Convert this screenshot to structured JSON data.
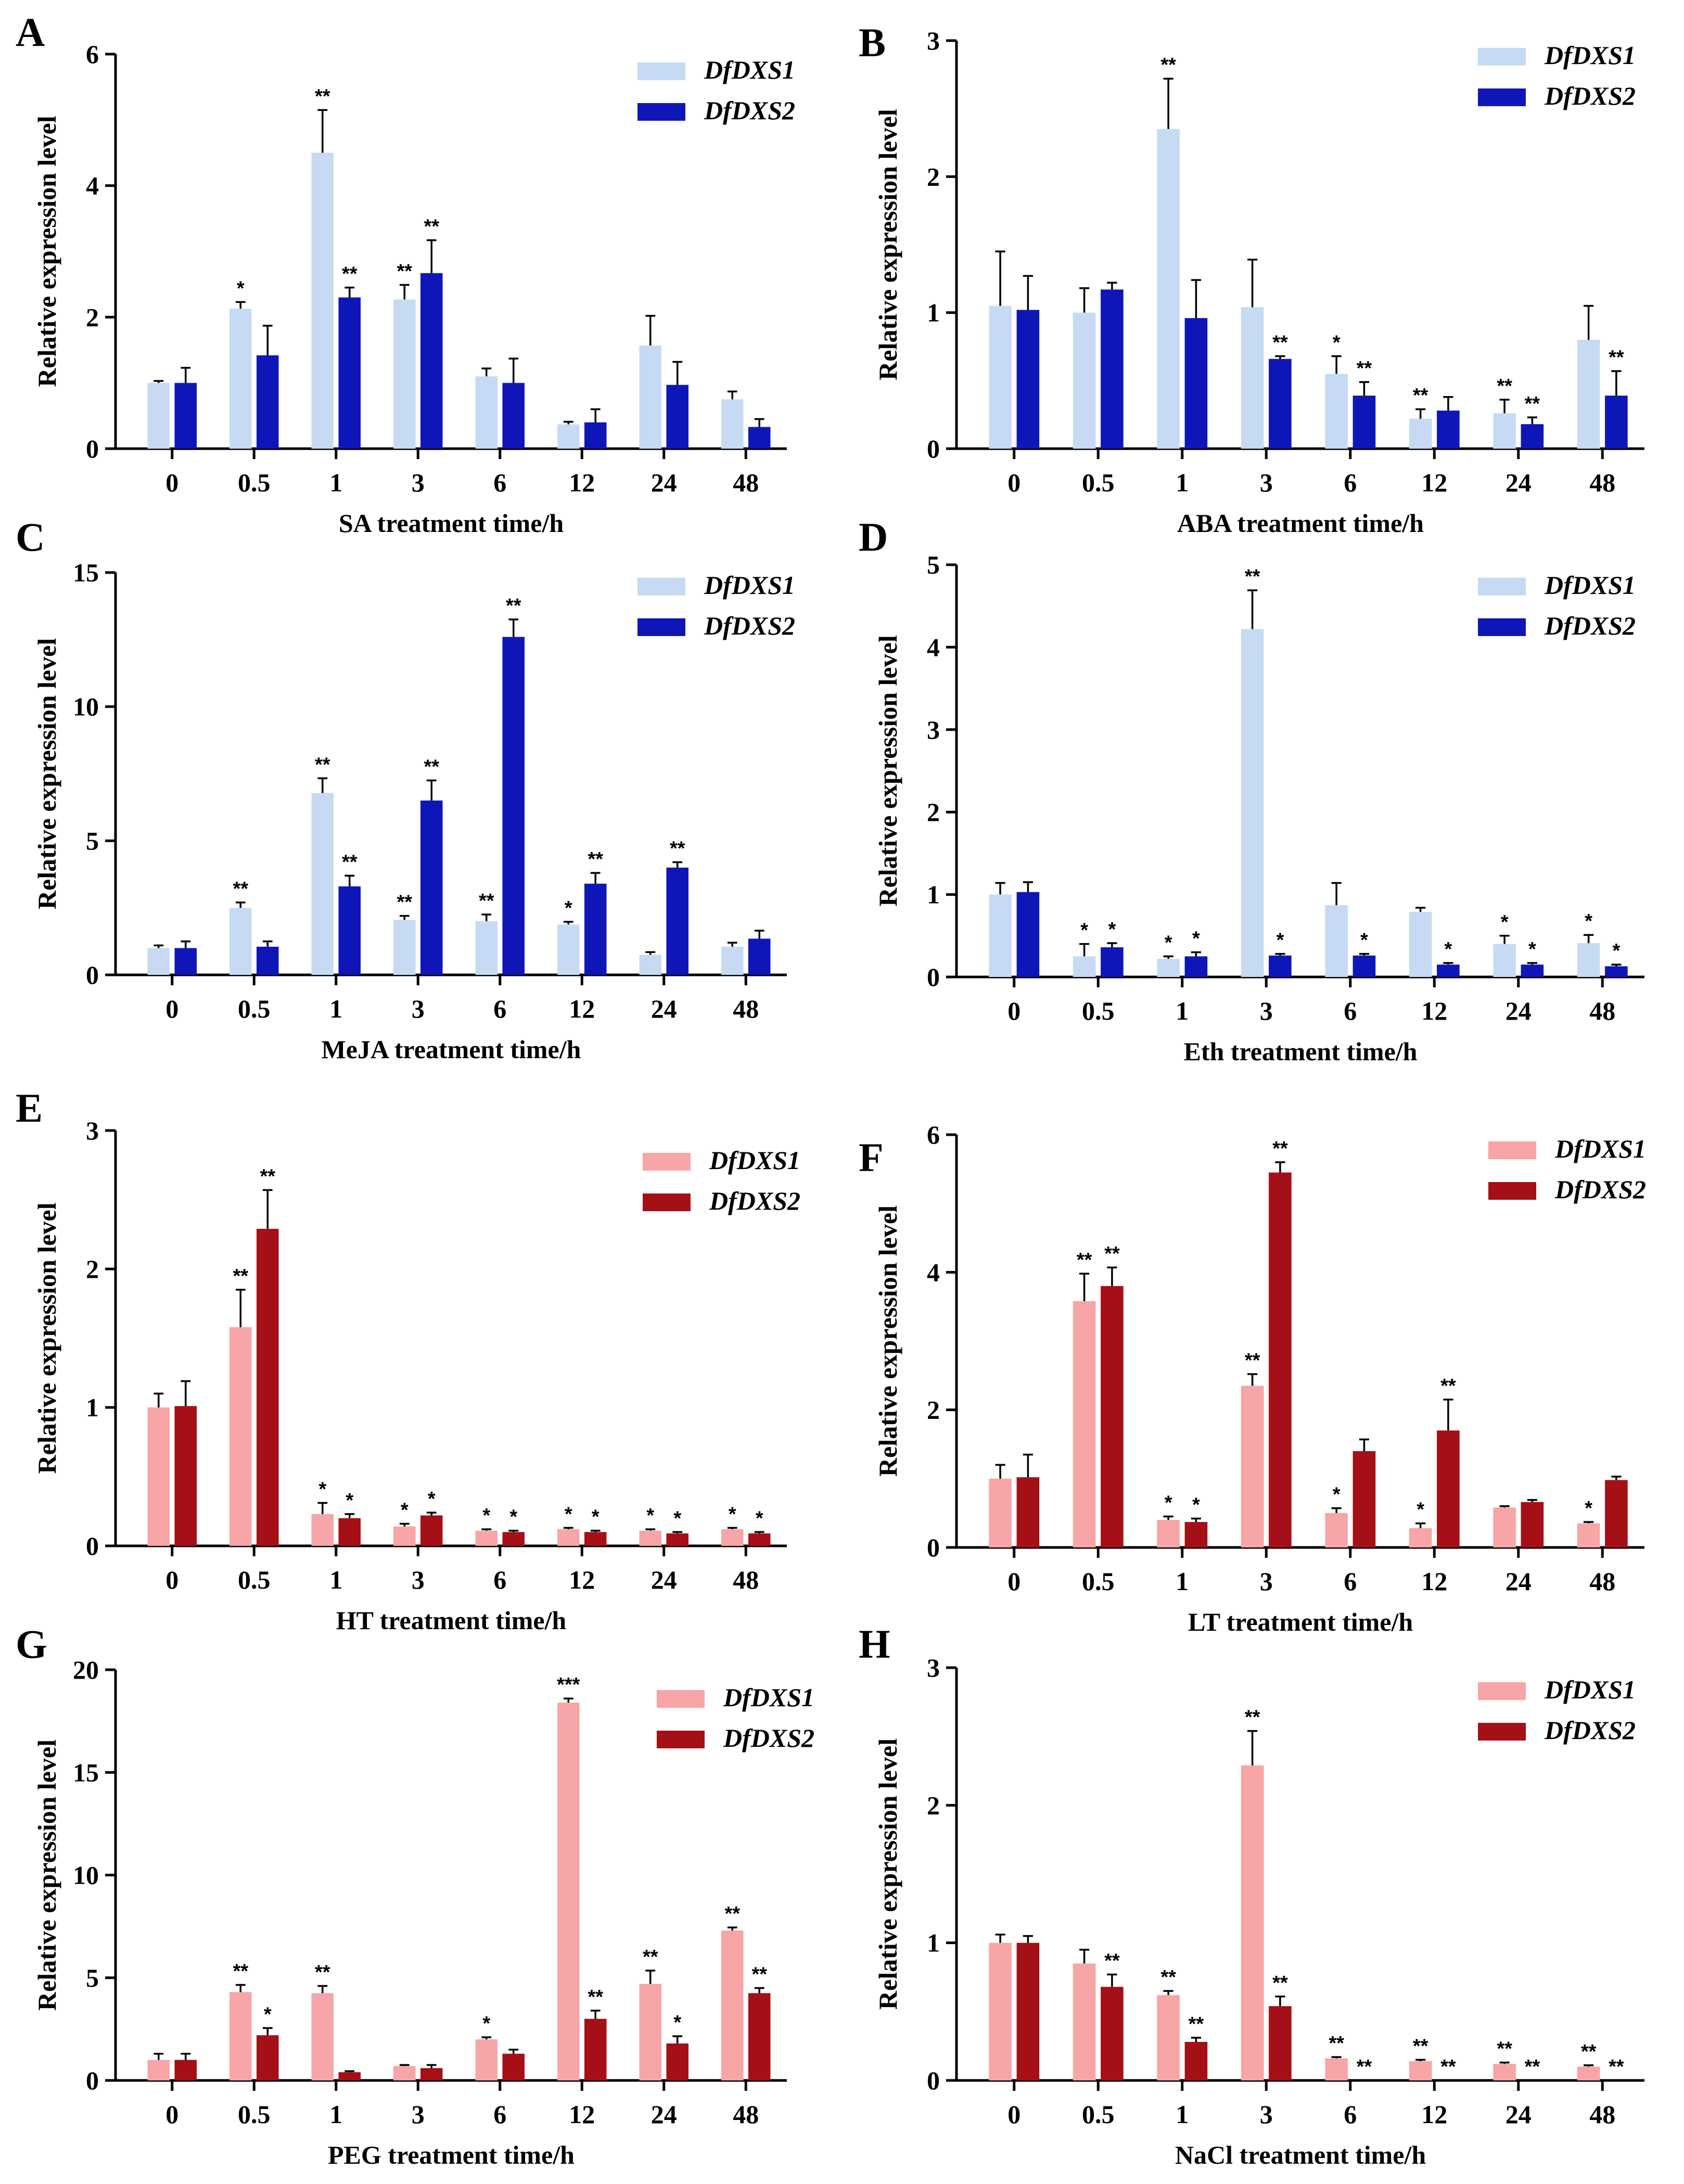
{
  "figure": {
    "colors": {
      "blue_light": "#c6dbf3",
      "blue_dark": "#0f16b8",
      "red_light": "#f7a5a6",
      "red_dark": "#a50f16"
    }
  },
  "chart_data": [
    {
      "type": "bar",
      "panel": "A",
      "title": "",
      "xlabel": "SA treatment time/h",
      "ylabel": "Relative expression  level",
      "categories": [
        "0",
        "0.5",
        "1",
        "3",
        "6",
        "12",
        "24",
        "48"
      ],
      "ylim": [
        0,
        6
      ],
      "yticks": [
        0,
        2,
        4,
        6
      ],
      "colors": [
        "#c6dbf3",
        "#0f16b8"
      ],
      "series": [
        {
          "name": "DfDXS1",
          "values": [
            1.0,
            2.13,
            4.5,
            2.27,
            1.1,
            0.37,
            1.57,
            0.75
          ],
          "errors": [
            0.03,
            0.1,
            0.65,
            0.22,
            0.12,
            0.04,
            0.45,
            0.12
          ],
          "sig": [
            "",
            "*",
            "**",
            "**",
            "",
            "",
            "",
            ""
          ]
        },
        {
          "name": "DfDXS2",
          "values": [
            1.0,
            1.42,
            2.3,
            2.67,
            1.0,
            0.4,
            0.97,
            0.33
          ],
          "errors": [
            0.23,
            0.45,
            0.15,
            0.5,
            0.37,
            0.2,
            0.35,
            0.12
          ],
          "sig": [
            "",
            "",
            "**",
            "**",
            "",
            "",
            "",
            ""
          ]
        }
      ]
    },
    {
      "type": "bar",
      "panel": "B",
      "title": "",
      "xlabel": "ABA treatment time/h",
      "ylabel": "Relative expression  level",
      "categories": [
        "0",
        "0.5",
        "1",
        "3",
        "6",
        "12",
        "24",
        "48"
      ],
      "ylim": [
        0,
        3
      ],
      "yticks": [
        0,
        1,
        2,
        3
      ],
      "colors": [
        "#c6dbf3",
        "#0f16b8"
      ],
      "series": [
        {
          "name": "DfDXS1",
          "values": [
            1.05,
            1.0,
            2.35,
            1.04,
            0.55,
            0.22,
            0.26,
            0.8
          ],
          "errors": [
            0.4,
            0.18,
            0.37,
            0.35,
            0.13,
            0.07,
            0.1,
            0.25
          ],
          "sig": [
            "",
            "",
            "**",
            "",
            "*",
            "**",
            "**",
            ""
          ]
        },
        {
          "name": "DfDXS2",
          "values": [
            1.02,
            1.17,
            0.96,
            0.66,
            0.39,
            0.28,
            0.18,
            0.39
          ],
          "errors": [
            0.25,
            0.05,
            0.28,
            0.02,
            0.1,
            0.1,
            0.05,
            0.18
          ],
          "sig": [
            "",
            "",
            "",
            "**",
            "**",
            "",
            "**",
            "**"
          ]
        }
      ]
    },
    {
      "type": "bar",
      "panel": "C",
      "title": "",
      "xlabel": "MeJA treatment time/h",
      "ylabel": "Relative expression  level",
      "categories": [
        "0",
        "0.5",
        "1",
        "3",
        "6",
        "12",
        "24",
        "48"
      ],
      "ylim": [
        0,
        15
      ],
      "yticks": [
        0,
        5,
        10,
        15
      ],
      "colors": [
        "#c6dbf3",
        "#0f16b8"
      ],
      "series": [
        {
          "name": "DfDXS1",
          "values": [
            1.0,
            2.5,
            6.78,
            2.05,
            2.0,
            1.88,
            0.75,
            1.05
          ],
          "errors": [
            0.1,
            0.2,
            0.55,
            0.15,
            0.25,
            0.1,
            0.1,
            0.15
          ],
          "sig": [
            "",
            "**",
            "**",
            "**",
            "**",
            "*",
            "",
            ""
          ]
        },
        {
          "name": "DfDXS2",
          "values": [
            1.0,
            1.05,
            3.3,
            6.5,
            12.6,
            3.4,
            4.0,
            1.35
          ],
          "errors": [
            0.25,
            0.2,
            0.4,
            0.75,
            0.65,
            0.4,
            0.2,
            0.3
          ],
          "sig": [
            "",
            "",
            "**",
            "**",
            "**",
            "**",
            "**",
            ""
          ]
        }
      ]
    },
    {
      "type": "bar",
      "panel": "D",
      "title": "",
      "xlabel": "Eth treatment time/h",
      "ylabel": "Relative expression  level",
      "categories": [
        "0",
        "0.5",
        "1",
        "3",
        "6",
        "12",
        "24",
        "48"
      ],
      "ylim": [
        0,
        5
      ],
      "yticks": [
        0,
        1,
        2,
        3,
        4,
        5
      ],
      "colors": [
        "#c6dbf3",
        "#0f16b8"
      ],
      "series": [
        {
          "name": "DfDXS1",
          "values": [
            1.0,
            0.25,
            0.22,
            4.22,
            0.87,
            0.79,
            0.4,
            0.41
          ],
          "errors": [
            0.14,
            0.15,
            0.03,
            0.47,
            0.27,
            0.05,
            0.1,
            0.1
          ],
          "sig": [
            "",
            "*",
            "*",
            "**",
            "",
            "",
            "*",
            "*"
          ]
        },
        {
          "name": "DfDXS2",
          "values": [
            1.03,
            0.36,
            0.25,
            0.26,
            0.26,
            0.15,
            0.15,
            0.13
          ],
          "errors": [
            0.12,
            0.05,
            0.05,
            0.02,
            0.02,
            0.02,
            0.02,
            0.02
          ],
          "sig": [
            "",
            "*",
            "*",
            "*",
            "*",
            "*",
            "*",
            "*"
          ]
        }
      ]
    },
    {
      "type": "bar",
      "panel": "E",
      "title": "",
      "xlabel": "HT treatment time/h",
      "ylabel": "Relative expression  level",
      "categories": [
        "0",
        "0.5",
        "1",
        "3",
        "6",
        "12",
        "24",
        "48"
      ],
      "ylim": [
        0,
        3
      ],
      "yticks": [
        0,
        1,
        2,
        3
      ],
      "colors": [
        "#f7a5a6",
        "#a50f16"
      ],
      "series": [
        {
          "name": "DfDXS1",
          "values": [
            1.0,
            1.58,
            0.23,
            0.14,
            0.11,
            0.12,
            0.11,
            0.12
          ],
          "errors": [
            0.1,
            0.27,
            0.08,
            0.02,
            0.01,
            0.01,
            0.01,
            0.01
          ],
          "sig": [
            "",
            "**",
            "*",
            "*",
            "*",
            "*",
            "*",
            "*"
          ]
        },
        {
          "name": "DfDXS2",
          "values": [
            1.01,
            2.29,
            0.2,
            0.22,
            0.1,
            0.1,
            0.09,
            0.09
          ],
          "errors": [
            0.18,
            0.28,
            0.03,
            0.02,
            0.01,
            0.01,
            0.01,
            0.01
          ],
          "sig": [
            "",
            "**",
            "*",
            "*",
            "*",
            "*",
            "*",
            "*"
          ]
        }
      ]
    },
    {
      "type": "bar",
      "panel": "F",
      "title": "",
      "xlabel": "LT treatment time/h",
      "ylabel": "Relative expression  level",
      "categories": [
        "0",
        "0.5",
        "1",
        "3",
        "6",
        "12",
        "24",
        "48"
      ],
      "ylim": [
        0,
        6
      ],
      "yticks": [
        0,
        2,
        4,
        6
      ],
      "colors": [
        "#f7a5a6",
        "#a50f16"
      ],
      "series": [
        {
          "name": "DfDXS1",
          "values": [
            1.0,
            3.58,
            0.4,
            2.35,
            0.5,
            0.28,
            0.58,
            0.35
          ],
          "errors": [
            0.2,
            0.4,
            0.05,
            0.17,
            0.07,
            0.07,
            0.02,
            0.02
          ],
          "sig": [
            "",
            "**",
            "*",
            "**",
            "*",
            "*",
            "",
            "*"
          ]
        },
        {
          "name": "DfDXS2",
          "values": [
            1.02,
            3.8,
            0.37,
            5.45,
            1.4,
            1.7,
            0.66,
            0.98
          ],
          "errors": [
            0.33,
            0.27,
            0.05,
            0.15,
            0.17,
            0.45,
            0.03,
            0.05
          ],
          "sig": [
            "",
            "**",
            "*",
            "**",
            "",
            "**",
            "",
            ""
          ]
        }
      ]
    },
    {
      "type": "bar",
      "panel": "G",
      "title": "",
      "xlabel": "PEG treatment time/h",
      "ylabel": "Relative expression  level",
      "categories": [
        "0",
        "0.5",
        "1",
        "3",
        "6",
        "12",
        "24",
        "48"
      ],
      "ylim": [
        0,
        20
      ],
      "yticks": [
        0,
        5,
        10,
        15,
        20
      ],
      "colors": [
        "#f7a5a6",
        "#a50f16"
      ],
      "series": [
        {
          "name": "DfDXS1",
          "values": [
            1.0,
            4.3,
            4.25,
            0.7,
            2.0,
            18.4,
            4.7,
            7.3
          ],
          "errors": [
            0.3,
            0.35,
            0.35,
            0.05,
            0.1,
            0.2,
            0.65,
            0.15
          ],
          "sig": [
            "",
            "**",
            "**",
            "",
            "*",
            "***",
            "**",
            "**"
          ]
        },
        {
          "name": "DfDXS2",
          "values": [
            1.0,
            2.2,
            0.4,
            0.6,
            1.3,
            3.0,
            1.8,
            4.25
          ],
          "errors": [
            0.3,
            0.35,
            0.05,
            0.15,
            0.2,
            0.4,
            0.35,
            0.25
          ],
          "sig": [
            "",
            "*",
            "",
            "",
            "",
            "**",
            "*",
            "**"
          ]
        }
      ]
    },
    {
      "type": "bar",
      "panel": "H",
      "title": "",
      "xlabel": "NaCl treatment time/h",
      "ylabel": "Relative expression  level",
      "categories": [
        "0",
        "0.5",
        "1",
        "3",
        "6",
        "12",
        "24",
        "48"
      ],
      "ylim": [
        0,
        3
      ],
      "yticks": [
        0,
        1,
        2,
        3
      ],
      "colors": [
        "#f7a5a6",
        "#a50f16"
      ],
      "series": [
        {
          "name": "DfDXS1",
          "values": [
            1.0,
            0.85,
            0.62,
            2.29,
            0.16,
            0.14,
            0.12,
            0.1
          ],
          "errors": [
            0.06,
            0.1,
            0.03,
            0.25,
            0.01,
            0.01,
            0.01,
            0.01
          ],
          "sig": [
            "",
            "",
            "**",
            "**",
            "**",
            "**",
            "**",
            "**"
          ]
        },
        {
          "name": "DfDXS2",
          "values": [
            1.0,
            0.68,
            0.28,
            0.54,
            0.0,
            0.0,
            0.0,
            0.0
          ],
          "errors": [
            0.05,
            0.09,
            0.03,
            0.07,
            0.0,
            0.0,
            0.0,
            0.0
          ],
          "sig": [
            "",
            "**",
            "**",
            "**",
            "**",
            "**",
            "**",
            "**"
          ]
        }
      ]
    }
  ]
}
